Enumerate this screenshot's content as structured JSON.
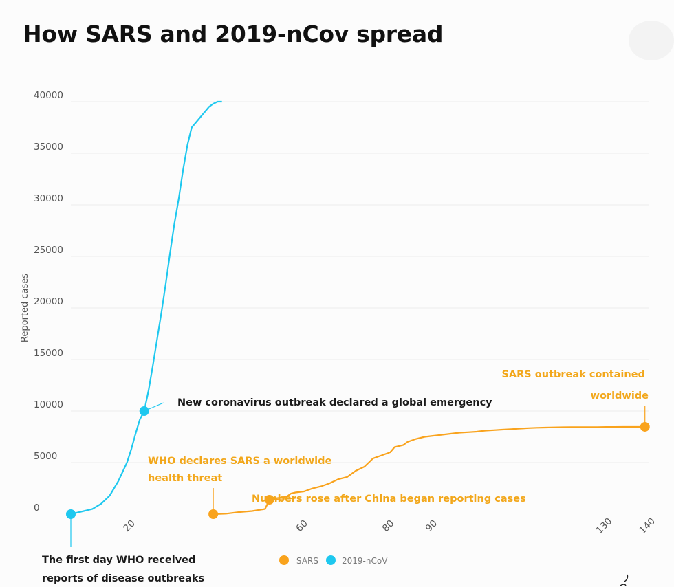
{
  "title": "How SARS and 2019-nCov spread",
  "chart_data": {
    "type": "line",
    "title": "How SARS and 2019-nCov spread",
    "ylabel": "Reported cases",
    "xlabel": "",
    "ylim": [
      0,
      40000
    ],
    "xlim": [
      6,
      140
    ],
    "y_ticks": [
      "0",
      "5000",
      "10000",
      "15000",
      "20000",
      "25000",
      "30000",
      "35000",
      "40000"
    ],
    "x_ticks": [
      "20",
      "60",
      "80",
      "90",
      "130",
      "140"
    ],
    "grid": true,
    "legend_position": "bottom-center",
    "colors": {
      "SARS": "#f9a31d",
      "2019-nCoV": "#1ec8ef"
    },
    "series": [
      {
        "name": "2019-nCoV",
        "x": [
          6,
          7,
          9,
          11,
          13,
          15,
          17,
          19,
          20,
          21,
          22,
          23,
          24,
          25,
          26,
          27,
          28,
          29,
          30,
          31,
          32,
          33,
          34,
          35,
          36,
          37,
          38,
          39,
          40,
          41
        ],
        "y": [
          0,
          100,
          300,
          500,
          1000,
          1800,
          3200,
          5000,
          6300,
          7800,
          9200,
          10000,
          12000,
          14400,
          17000,
          19600,
          22400,
          25400,
          28200,
          30600,
          33400,
          35800,
          37500,
          38000,
          38500,
          39000,
          39500,
          39800,
          40000,
          40000
        ]
      },
      {
        "name": "SARS",
        "x": [
          39,
          42,
          45,
          48,
          51,
          52,
          53,
          56,
          57,
          58,
          60,
          62,
          64,
          66,
          67,
          68,
          70,
          72,
          74,
          75,
          76,
          78,
          80,
          81,
          83,
          84,
          86,
          88,
          90,
          92,
          94,
          96,
          98,
          100,
          102,
          104,
          106,
          108,
          110,
          112,
          114,
          116,
          118,
          120,
          122,
          124,
          126,
          128,
          130,
          132,
          134,
          137,
          139
        ],
        "y": [
          0,
          50,
          200,
          300,
          500,
          1400,
          1500,
          1700,
          2000,
          2100,
          2200,
          2500,
          2700,
          3000,
          3200,
          3400,
          3600,
          4200,
          4600,
          5000,
          5400,
          5700,
          6000,
          6500,
          6700,
          7000,
          7300,
          7500,
          7600,
          7700,
          7800,
          7900,
          7950,
          8000,
          8100,
          8150,
          8200,
          8250,
          8300,
          8350,
          8380,
          8400,
          8420,
          8430,
          8440,
          8450,
          8450,
          8450,
          8460,
          8460,
          8470,
          8470,
          8470
        ]
      }
    ],
    "markers": [
      {
        "series": "2019-nCoV",
        "x": 6,
        "y": 0
      },
      {
        "series": "2019-nCoV",
        "x": 23,
        "y": 10000
      },
      {
        "series": "SARS",
        "x": 39,
        "y": 0
      },
      {
        "series": "SARS",
        "x": 52,
        "y": 1400
      },
      {
        "series": "SARS",
        "x": 139,
        "y": 8470
      }
    ],
    "annotations": [
      {
        "series": "2019-nCoV",
        "lines": [
          "The first day WHO received",
          "reports of disease outbreaks"
        ]
      },
      {
        "series": "2019-nCoV",
        "lines": [
          "New coronavirus outbreak declared a global emergency"
        ]
      },
      {
        "series": "SARS",
        "lines": [
          "WHO declares SARS a worldwide",
          "health threat"
        ]
      },
      {
        "series": "SARS",
        "lines": [
          "Numbers rose after China began reporting cases"
        ]
      },
      {
        "series": "SARS",
        "lines": [
          "SARS outbreak contained",
          "worldwide"
        ]
      }
    ],
    "legend": [
      "SARS",
      "2019-nCoV"
    ]
  }
}
